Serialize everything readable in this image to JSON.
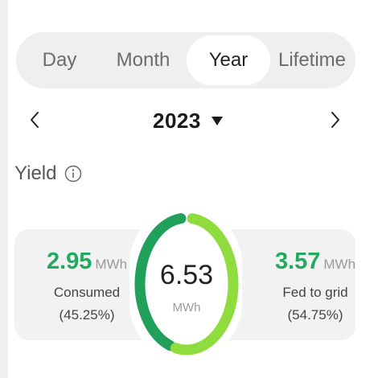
{
  "period_tabs": [
    {
      "label": "Day",
      "active": false
    },
    {
      "label": "Month",
      "active": false
    },
    {
      "label": "Year",
      "active": true
    },
    {
      "label": "Lifetime",
      "active": false
    }
  ],
  "date_nav": {
    "prev_icon": "chevron-left-icon",
    "next_icon": "chevron-right-icon",
    "selected_year": "2023",
    "dropdown_icon": "caret-down-icon"
  },
  "yield": {
    "title": "Yield",
    "info_icon": "info-icon",
    "total_value": "6.53",
    "total_unit": "MWh",
    "consumed": {
      "value": "2.95",
      "unit": "MWh",
      "label": "Consumed",
      "percent_text": "(45.25%)",
      "fraction": 0.4525
    },
    "fed_to_grid": {
      "value": "3.57",
      "unit": "MWh",
      "label": "Fed to grid",
      "percent_text": "(54.75%)",
      "fraction": 0.5475
    }
  },
  "colors": {
    "consumed": "#21a05c",
    "fed_to_grid": "#8fdc3e",
    "value_text": "#24a862"
  }
}
